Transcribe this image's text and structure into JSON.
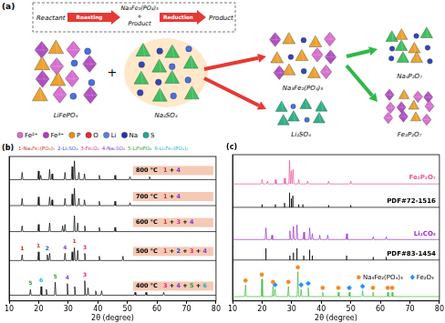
{
  "diagram": {
    "label": "(a)",
    "process": {
      "reactant": "Reactant",
      "roasting": "Roasting",
      "intermediate": [
        "Na₃Fe₂(PO₄)₃",
        "+",
        "Product"
      ],
      "reduction": "Reduction",
      "product": "Product"
    },
    "reactants": {
      "items": [
        "LiFePO₄",
        "Na₂SO₄"
      ],
      "join": "+"
    },
    "roasting_products": [
      "Na₃Fe₂(PO₄)₃",
      "Li₂SO₄"
    ],
    "reduction_products": [
      "Na₄P₂O₇",
      "Fe₂P₂O₇"
    ],
    "atom_legend": [
      {
        "label": "Fe²⁺",
        "color": "#d86fd0"
      },
      {
        "label": "Fe³⁺",
        "color": "#b03cc0"
      },
      {
        "label": "P",
        "color": "#f08a1e"
      },
      {
        "label": "O",
        "color": "#e6262e"
      },
      {
        "label": "Li",
        "color": "#5a7ee8"
      },
      {
        "label": "Na",
        "color": "#2434a8"
      },
      {
        "label": "S",
        "color": "#1fa89a"
      }
    ]
  },
  "chart_data": [
    {
      "type": "line",
      "label": "(b)",
      "x_label": "2θ (degree)",
      "xlim": [
        10,
        80
      ],
      "xticks": [
        10,
        20,
        30,
        40,
        50,
        60,
        70,
        80
      ],
      "ylim": [
        0,
        100
      ],
      "tick_labels": "x",
      "grid": false,
      "legend_items": [
        {
          "label": "1-Na₃Fe₂(PO₄)₃",
          "color": "#c0392b"
        },
        {
          "label": "2-Li₂SO₄",
          "color": "#1f4fd1"
        },
        {
          "label": "3-Fe₂O₃",
          "color": "#e0218a"
        },
        {
          "label": "4-Na₂SO₄",
          "color": "#7b3fd1"
        },
        {
          "label": "5-LiFePO₄",
          "color": "#2e9e3e"
        },
        {
          "label": "6-Li₃Fe₂(PO₄)₃",
          "color": "#17b3c9"
        }
      ],
      "series": [
        {
          "name": "800 °C",
          "phases": "1 + 4",
          "color": "#000000",
          "x": [
            10,
            14.15,
            14.4,
            14.65,
            19.65,
            19.9,
            20.15,
            20.45,
            20.7,
            20.95,
            23.45,
            23.7,
            23.95,
            24.25,
            24.5,
            24.75,
            28.65,
            28.9,
            29.15,
            31.05,
            31.3,
            31.55,
            31.85,
            32.1,
            32.35,
            33.35,
            33.6,
            33.85,
            35.25,
            35.5,
            35.75,
            40.25,
            40.5,
            40.75,
            45.55,
            45.8,
            46.05,
            50.65,
            50.9,
            51.15,
            57.25,
            57.5,
            57.75,
            80
          ],
          "values": [
            84,
            84,
            89,
            84,
            84,
            90,
            84,
            84,
            87,
            84,
            84,
            91,
            84,
            84,
            88,
            84,
            84,
            89,
            84,
            84,
            93,
            84,
            84,
            97,
            84,
            84,
            89,
            84,
            84,
            88,
            84,
            84,
            87,
            84,
            84,
            87,
            84,
            84,
            86,
            84,
            84,
            86,
            84,
            84
          ]
        },
        {
          "name": "700 °C",
          "phases": "1 + 4",
          "color": "#000000",
          "x": [
            10,
            14.15,
            14.4,
            14.65,
            19.65,
            19.9,
            20.15,
            23.45,
            23.7,
            23.95,
            24.25,
            24.5,
            24.75,
            28.65,
            28.9,
            29.15,
            31.05,
            31.3,
            31.55,
            31.85,
            32.1,
            32.35,
            33.35,
            33.6,
            33.85,
            35.25,
            35.5,
            35.75,
            40.25,
            40.5,
            40.75,
            45.55,
            45.8,
            46.05,
            50.65,
            50.9,
            51.15,
            80
          ],
          "values": [
            66,
            66,
            71,
            66,
            66,
            72,
            66,
            66,
            72,
            66,
            66,
            70,
            66,
            66,
            71,
            66,
            66,
            74,
            66,
            66,
            78,
            66,
            66,
            71,
            66,
            66,
            70,
            66,
            66,
            69,
            66,
            66,
            69,
            66,
            66,
            68,
            66,
            66
          ]
        },
        {
          "name": "600 °C",
          "phases": "1 + 3 + 4",
          "color": "#000000",
          "x": [
            10,
            14.15,
            14.4,
            14.65,
            19.65,
            19.9,
            20.15,
            23.45,
            23.7,
            23.95,
            27.85,
            28.1,
            28.35,
            28.65,
            28.9,
            29.15,
            31.85,
            32.1,
            32.35,
            32.95,
            33.2,
            33.45,
            35.35,
            35.6,
            35.85,
            40.25,
            40.5,
            40.75,
            45.55,
            45.8,
            46.05,
            80
          ],
          "values": [
            48,
            48,
            52,
            48,
            48,
            53,
            48,
            48,
            54,
            48,
            48,
            52,
            48,
            48,
            53,
            48,
            48,
            59,
            48,
            48,
            54,
            48,
            48,
            52,
            48,
            48,
            51,
            48,
            48,
            51,
            48,
            48
          ]
        },
        {
          "name": "500 °C",
          "phases": "1 + 2 + 3 + 4",
          "color": "#000000",
          "x": [
            10,
            14.15,
            14.4,
            14.65,
            19.65,
            19.9,
            20.15,
            22.65,
            22.9,
            23.15,
            23.45,
            23.7,
            23.95,
            28.65,
            28.9,
            29.15,
            31.05,
            31.3,
            31.55,
            31.85,
            32.1,
            32.35,
            32.95,
            33.2,
            33.45,
            35.35,
            35.6,
            35.85,
            40.25,
            40.5,
            40.75,
            48.25,
            48.5,
            48.75,
            80
          ],
          "values": [
            28,
            28,
            32,
            28,
            28,
            34,
            28,
            28,
            32,
            28,
            28,
            33,
            28,
            28,
            33,
            28,
            28,
            34,
            28,
            28,
            37,
            28,
            28,
            35,
            28,
            28,
            33,
            28,
            28,
            31,
            28,
            28,
            31,
            28,
            28
          ]
        },
        {
          "name": "400 °C",
          "phases": "3 + 4 + 5 + 6",
          "color": "#000000",
          "x": [
            10,
            16.95,
            17.2,
            17.45,
            20.55,
            20.8,
            21.05,
            22.35,
            22.6,
            22.85,
            25.35,
            25.6,
            25.85,
            29.45,
            29.7,
            29.95,
            31.95,
            32.2,
            32.45,
            35.35,
            35.6,
            35.85,
            36.45,
            36.7,
            36.95,
            39.05,
            39.3,
            39.55,
            41.05,
            41.3,
            41.55,
            52.35,
            52.6,
            52.85,
            56.05,
            56.3,
            56.55,
            62.05,
            62.3,
            62.55,
            80
          ],
          "values": [
            4,
            4,
            8,
            4,
            4,
            10,
            4,
            4,
            8,
            4,
            4,
            13,
            4,
            4,
            12,
            4,
            4,
            10,
            4,
            4,
            14,
            4,
            4,
            9,
            4,
            4,
            7,
            4,
            4,
            7,
            4,
            4,
            6,
            4,
            4,
            6,
            4,
            4,
            6,
            4,
            4
          ]
        }
      ],
      "peak_labels": [
        {
          "x": 14.4,
          "y": 34,
          "label": "1",
          "color": "#c0392b"
        },
        {
          "x": 19.9,
          "y": 36,
          "label": "1",
          "color": "#c0392b"
        },
        {
          "x": 22.9,
          "y": 34,
          "label": "2",
          "color": "#1f4fd1"
        },
        {
          "x": 28.9,
          "y": 35,
          "label": "4",
          "color": "#7b3fd1"
        },
        {
          "x": 32.1,
          "y": 39,
          "label": "1",
          "color": "#c0392b"
        },
        {
          "x": 35.6,
          "y": 35,
          "label": "3",
          "color": "#e0218a"
        },
        {
          "x": 17.2,
          "y": 10,
          "label": "5",
          "color": "#2e9e3e"
        },
        {
          "x": 20.8,
          "y": 12,
          "label": "6",
          "color": "#17b3c9"
        },
        {
          "x": 25.6,
          "y": 15,
          "label": "5",
          "color": "#2e9e3e"
        },
        {
          "x": 29.7,
          "y": 14,
          "label": "4",
          "color": "#7b3fd1"
        },
        {
          "x": 35.6,
          "y": 16,
          "label": "3",
          "color": "#e0218a"
        }
      ]
    },
    {
      "type": "line",
      "label": "(c)",
      "x_label": "2θ (degree)",
      "xlim": [
        10,
        80
      ],
      "xticks": [
        10,
        20,
        30,
        40,
        50,
        60,
        70,
        80
      ],
      "ylim": [
        0,
        100
      ],
      "tick_labels": "x",
      "grid": false,
      "legend": "lower right",
      "series": [
        {
          "name": "Fe₂P₂O₇",
          "color": "#e8559a",
          "x": [
            10,
            19.75,
            20,
            20.25,
            21.55,
            21.8,
            22.05,
            24.25,
            24.5,
            24.75,
            27.35,
            27.6,
            27.85,
            29.05,
            29.3,
            29.55,
            29.65,
            29.9,
            30.15,
            30.25,
            30.5,
            30.75,
            32.15,
            32.4,
            32.65,
            35.15,
            35.4,
            35.65,
            42.25,
            42.5,
            42.75,
            49.75,
            50,
            50.25,
            80
          ],
          "values": [
            80,
            80,
            83,
            80,
            80,
            82,
            80,
            80,
            83,
            80,
            80,
            84,
            80,
            80,
            96,
            80,
            80,
            89,
            80,
            80,
            90,
            80,
            80,
            83,
            80,
            80,
            82,
            80,
            80,
            82,
            80,
            80,
            82,
            80,
            80
          ]
        },
        {
          "name": "PDF#72-1516",
          "color": "#000000",
          "x": [
            10,
            20,
            20,
            20,
            24.5,
            24.5,
            24.5,
            27.6,
            27.6,
            27.6,
            29.3,
            29.3,
            29.3,
            29.9,
            29.9,
            29.9,
            30.4,
            30.4,
            30.4,
            32.4,
            32.4,
            32.4,
            33.8,
            33.8,
            33.8,
            42.5,
            42.5,
            42.5,
            50,
            50,
            50,
            80
          ],
          "values": [
            64,
            64,
            66,
            64,
            64,
            66,
            64,
            64,
            67,
            64,
            64,
            74,
            64,
            64,
            70,
            64,
            64,
            72,
            64,
            64,
            66,
            64,
            64,
            66,
            64,
            64,
            65.5,
            64,
            64,
            65.5,
            64,
            64
          ]
        },
        {
          "name": "Li₂CO₃",
          "color": "#9b30c8",
          "x": [
            10,
            21.05,
            21.3,
            21.55,
            23.05,
            23.3,
            23.55,
            29.15,
            29.4,
            29.65,
            30.35,
            30.6,
            30.85,
            31.55,
            31.8,
            32.05,
            33.85,
            34.1,
            34.35,
            35.85,
            36.1,
            36.35,
            36.75,
            37,
            37.25,
            39.25,
            39.5,
            39.75,
            41.95,
            42.2,
            42.45,
            48.35,
            48.6,
            48.85,
            57.35,
            57.6,
            57.85,
            61.75,
            62,
            62.25,
            80
          ],
          "values": [
            42,
            42,
            50,
            42,
            42,
            45,
            42,
            42,
            48,
            42,
            42,
            51,
            42,
            42,
            52,
            42,
            42,
            47,
            42,
            42,
            50,
            42,
            42,
            46,
            42,
            42,
            45,
            42,
            42,
            45,
            42,
            42,
            46,
            42,
            42,
            44,
            42,
            42,
            44,
            42,
            42
          ]
        },
        {
          "name": "PDF#83-1454",
          "color": "#000000",
          "x": [
            10,
            21.3,
            21.3,
            21.3,
            29.4,
            29.4,
            29.4,
            30.6,
            30.6,
            30.6,
            31.8,
            31.8,
            31.8,
            34.1,
            34.1,
            34.1,
            36.1,
            36.1,
            36.1,
            37,
            37,
            37,
            48.6,
            48.6,
            48.6,
            57.6,
            57.6,
            57.6,
            62,
            62,
            62,
            80
          ],
          "values": [
            28,
            28,
            36,
            28,
            28,
            31,
            28,
            28,
            33,
            28,
            28,
            36,
            28,
            28,
            31,
            28,
            28,
            35,
            28,
            28,
            31,
            28,
            28,
            31,
            28,
            28,
            30,
            28,
            28,
            30,
            28,
            28
          ]
        },
        {
          "color": "#3cb83c",
          "x": [
            10,
            14.15,
            14.4,
            14.65,
            19.65,
            19.9,
            20.15,
            23.45,
            23.7,
            23.95,
            24.15,
            24.4,
            24.65,
            28.65,
            28.9,
            29.15,
            31.85,
            32.1,
            32.35,
            32.95,
            33.2,
            33.45,
            35.35,
            35.6,
            35.85,
            40.25,
            40.5,
            40.75,
            45.55,
            45.8,
            46.05,
            49.25,
            49.5,
            49.75,
            53.75,
            54,
            54.25,
            57.25,
            57.5,
            57.75,
            62.25,
            62.5,
            62.75,
            63.75,
            64,
            64.25,
            80
          ],
          "values": [
            3,
            3,
            11,
            3,
            3,
            15,
            3,
            3,
            10,
            3,
            3,
            8,
            3,
            3,
            10,
            3,
            3,
            20,
            3,
            3,
            8,
            3,
            3,
            9,
            3,
            3,
            6,
            3,
            3,
            6,
            3,
            3,
            6,
            3,
            3,
            7,
            3,
            3,
            6,
            3,
            3,
            6,
            3,
            3,
            6,
            3,
            3
          ]
        },
        {
          "name": "Na₃Fe₂(PO₄)₃",
          "type": "scatter",
          "marker": "circle",
          "color": "#f08a24",
          "x": [
            14.4,
            19.9,
            23.7,
            28.9,
            32.1,
            40.5,
            45.8,
            57.5,
            62.5,
            64
          ],
          "values": [
            14,
            18,
            13,
            13,
            23,
            9,
            9,
            9,
            9,
            9
          ]
        },
        {
          "name": "Fe₂O₃",
          "type": "scatter",
          "marker": "diamond",
          "color": "#1e90ff",
          "x": [
            24.4,
            33.2,
            35.6,
            49.5,
            54
          ],
          "values": [
            11,
            11,
            12,
            9,
            10
          ]
        }
      ]
    }
  ]
}
